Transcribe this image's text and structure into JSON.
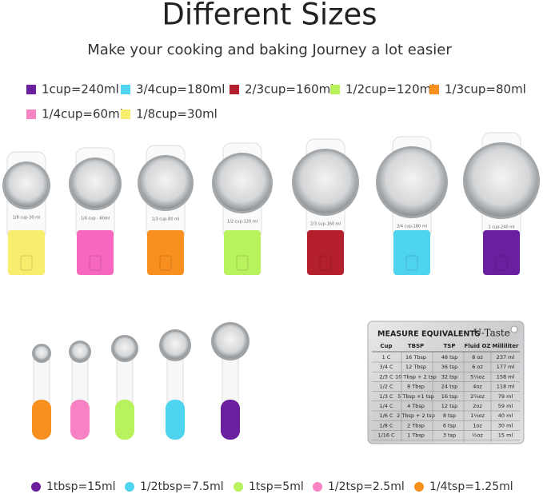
{
  "header": {
    "title": "Different Sizes",
    "subtitle": "Make your cooking and baking Journey a lot easier"
  },
  "cup_legend": [
    {
      "label": "1cup=240ml",
      "color": "#6a1f9e"
    },
    {
      "label": "3/4cup=180ml",
      "color": "#4fd4ef"
    },
    {
      "label": "2/3cup=160ml",
      "color": "#b31f2c"
    },
    {
      "label": "1/2cup=120ml",
      "color": "#b8f25c"
    },
    {
      "label": "1/3cup=80ml",
      "color": "#f7901e"
    },
    {
      "label": "1/4cup=60ml",
      "color": "#f782c4"
    },
    {
      "label": "1/8cup=30ml",
      "color": "#f6ee6c"
    }
  ],
  "cups": [
    {
      "label": "1/8 cup-30 ml",
      "color": "#f6ee6c"
    },
    {
      "label": "1/4 cup - 60ml",
      "color": "#f767c0"
    },
    {
      "label": "1/3 cup-80 ml",
      "color": "#f7901e"
    },
    {
      "label": "1/2 cup-120 ml",
      "color": "#b8f25c"
    },
    {
      "label": "2/3 cup-160 ml",
      "color": "#b31f2c"
    },
    {
      "label": "3/4 cup-180 ml",
      "color": "#4fd4ef"
    },
    {
      "label": "1 cup-240 ml",
      "color": "#6a1f9e"
    }
  ],
  "spoons": [
    {
      "color": "#f7901e"
    },
    {
      "color": "#f782c4"
    },
    {
      "color": "#b8f25c"
    },
    {
      "color": "#4fd4ef"
    },
    {
      "color": "#6a1f9e"
    }
  ],
  "magnet": {
    "title": "MEASURE EQUIVALENTS",
    "brand": "U-Taste",
    "header": [
      "Cup",
      "TBSP",
      "TSP",
      "Fluid OZ",
      "Milliliter"
    ],
    "rows": [
      [
        "1 C",
        "16 Tbsp",
        "48 tsp",
        "8 oz",
        "237 ml"
      ],
      [
        "3/4 C",
        "12 Tbsp",
        "36 tsp",
        "6 oz",
        "177 ml"
      ],
      [
        "2/3 C",
        "10 Tbsp + 2 tsp",
        "32 tsp",
        "5⅓oz",
        "158 ml"
      ],
      [
        "1/2 C",
        "8 Tbsp",
        "24 tsp",
        "4oz",
        "118 ml"
      ],
      [
        "1/3 C",
        "5 Tbsp +1 tsp",
        "16 tsp",
        "2⅔oz",
        "79 ml"
      ],
      [
        "1/4 C",
        "4 Tbsp",
        "12 tsp",
        "2oz",
        "59 ml"
      ],
      [
        "1/6 C",
        "2 Tbsp + 2 tsp",
        "8 tsp",
        "1⅓oz",
        "40 ml"
      ],
      [
        "1/8 C",
        "2 Tbsp",
        "6 tsp",
        "1oz",
        "30 ml"
      ],
      [
        "1/16 C",
        "1 Tbsp",
        "3 tsp",
        "½oz",
        "15 ml"
      ]
    ]
  },
  "spoon_legend": [
    {
      "label": "1tbsp=15ml",
      "color": "#6a1f9e"
    },
    {
      "label": "1/2tbsp=7.5ml",
      "color": "#4fd4ef"
    },
    {
      "label": "1tsp=5ml",
      "color": "#b8f25c"
    },
    {
      "label": "1/2tsp=2.5ml",
      "color": "#f782c4"
    },
    {
      "label": "1/4tsp=1.25ml",
      "color": "#f7901e"
    }
  ]
}
